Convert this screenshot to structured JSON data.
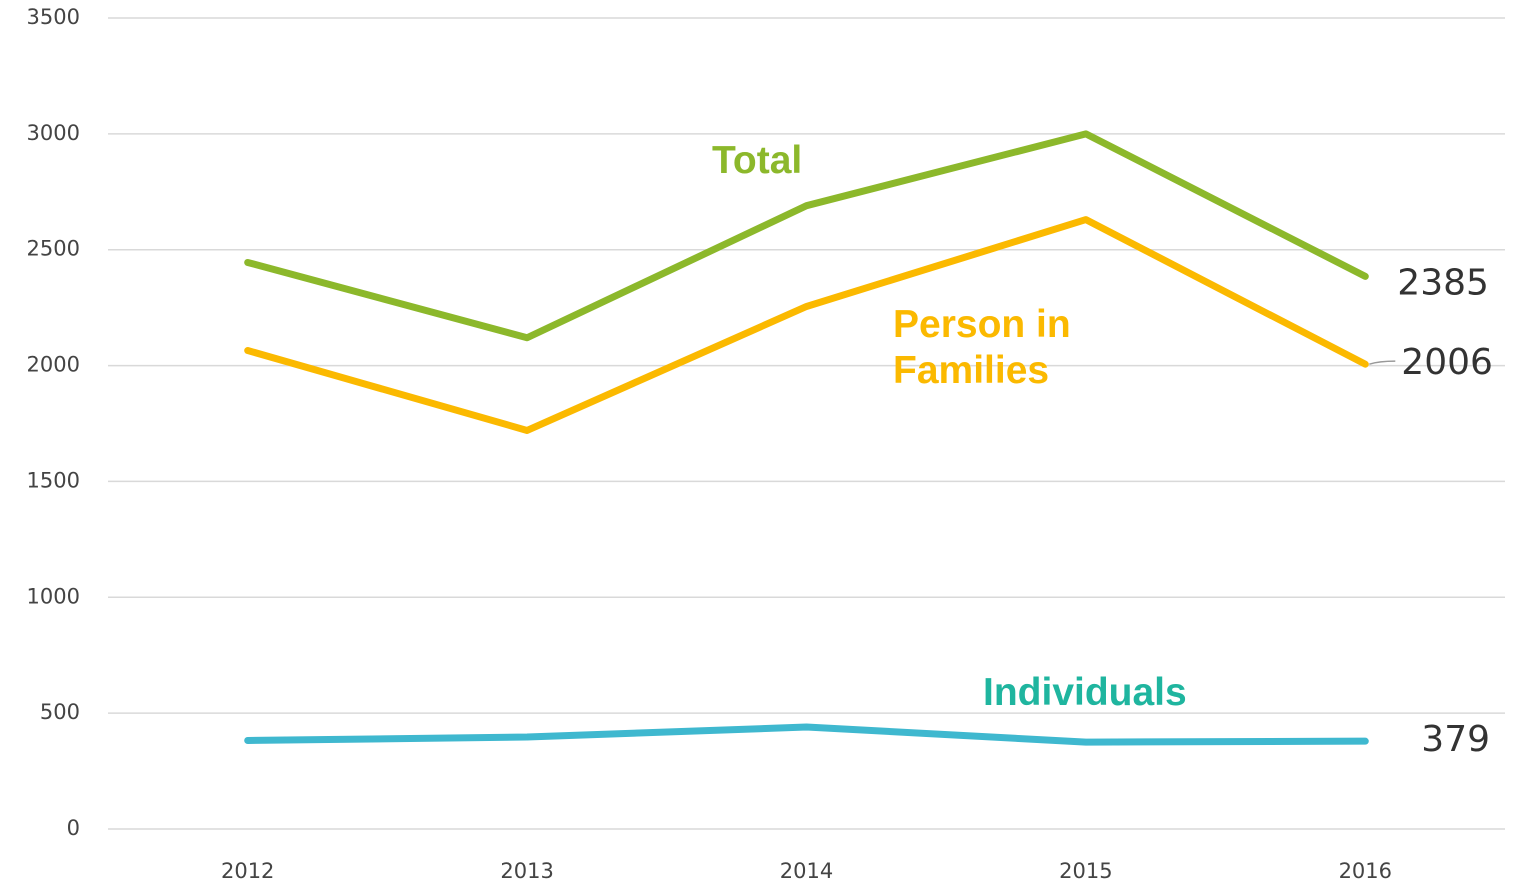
{
  "chart_data": {
    "type": "line",
    "categories": [
      "2012",
      "2013",
      "2014",
      "2015",
      "2016"
    ],
    "series": [
      {
        "name": "Total",
        "color": "#8cb82b",
        "label_color": "#8cb82b",
        "values": [
          2445,
          2120,
          2690,
          3000,
          2385
        ]
      },
      {
        "name": "Person in Families",
        "color": "#fbb900",
        "label_color": "#fbb900",
        "values": [
          2065,
          1720,
          2255,
          2630,
          2006
        ]
      },
      {
        "name": "Individuals",
        "color": "#3fb8cf",
        "label_color": "#1fb59f",
        "values": [
          382,
          397,
          440,
          375,
          379
        ]
      }
    ],
    "ylim": [
      0,
      3500
    ],
    "yticks": [
      0,
      500,
      1000,
      1500,
      2000,
      2500,
      3000,
      3500
    ],
    "grid": true
  }
}
